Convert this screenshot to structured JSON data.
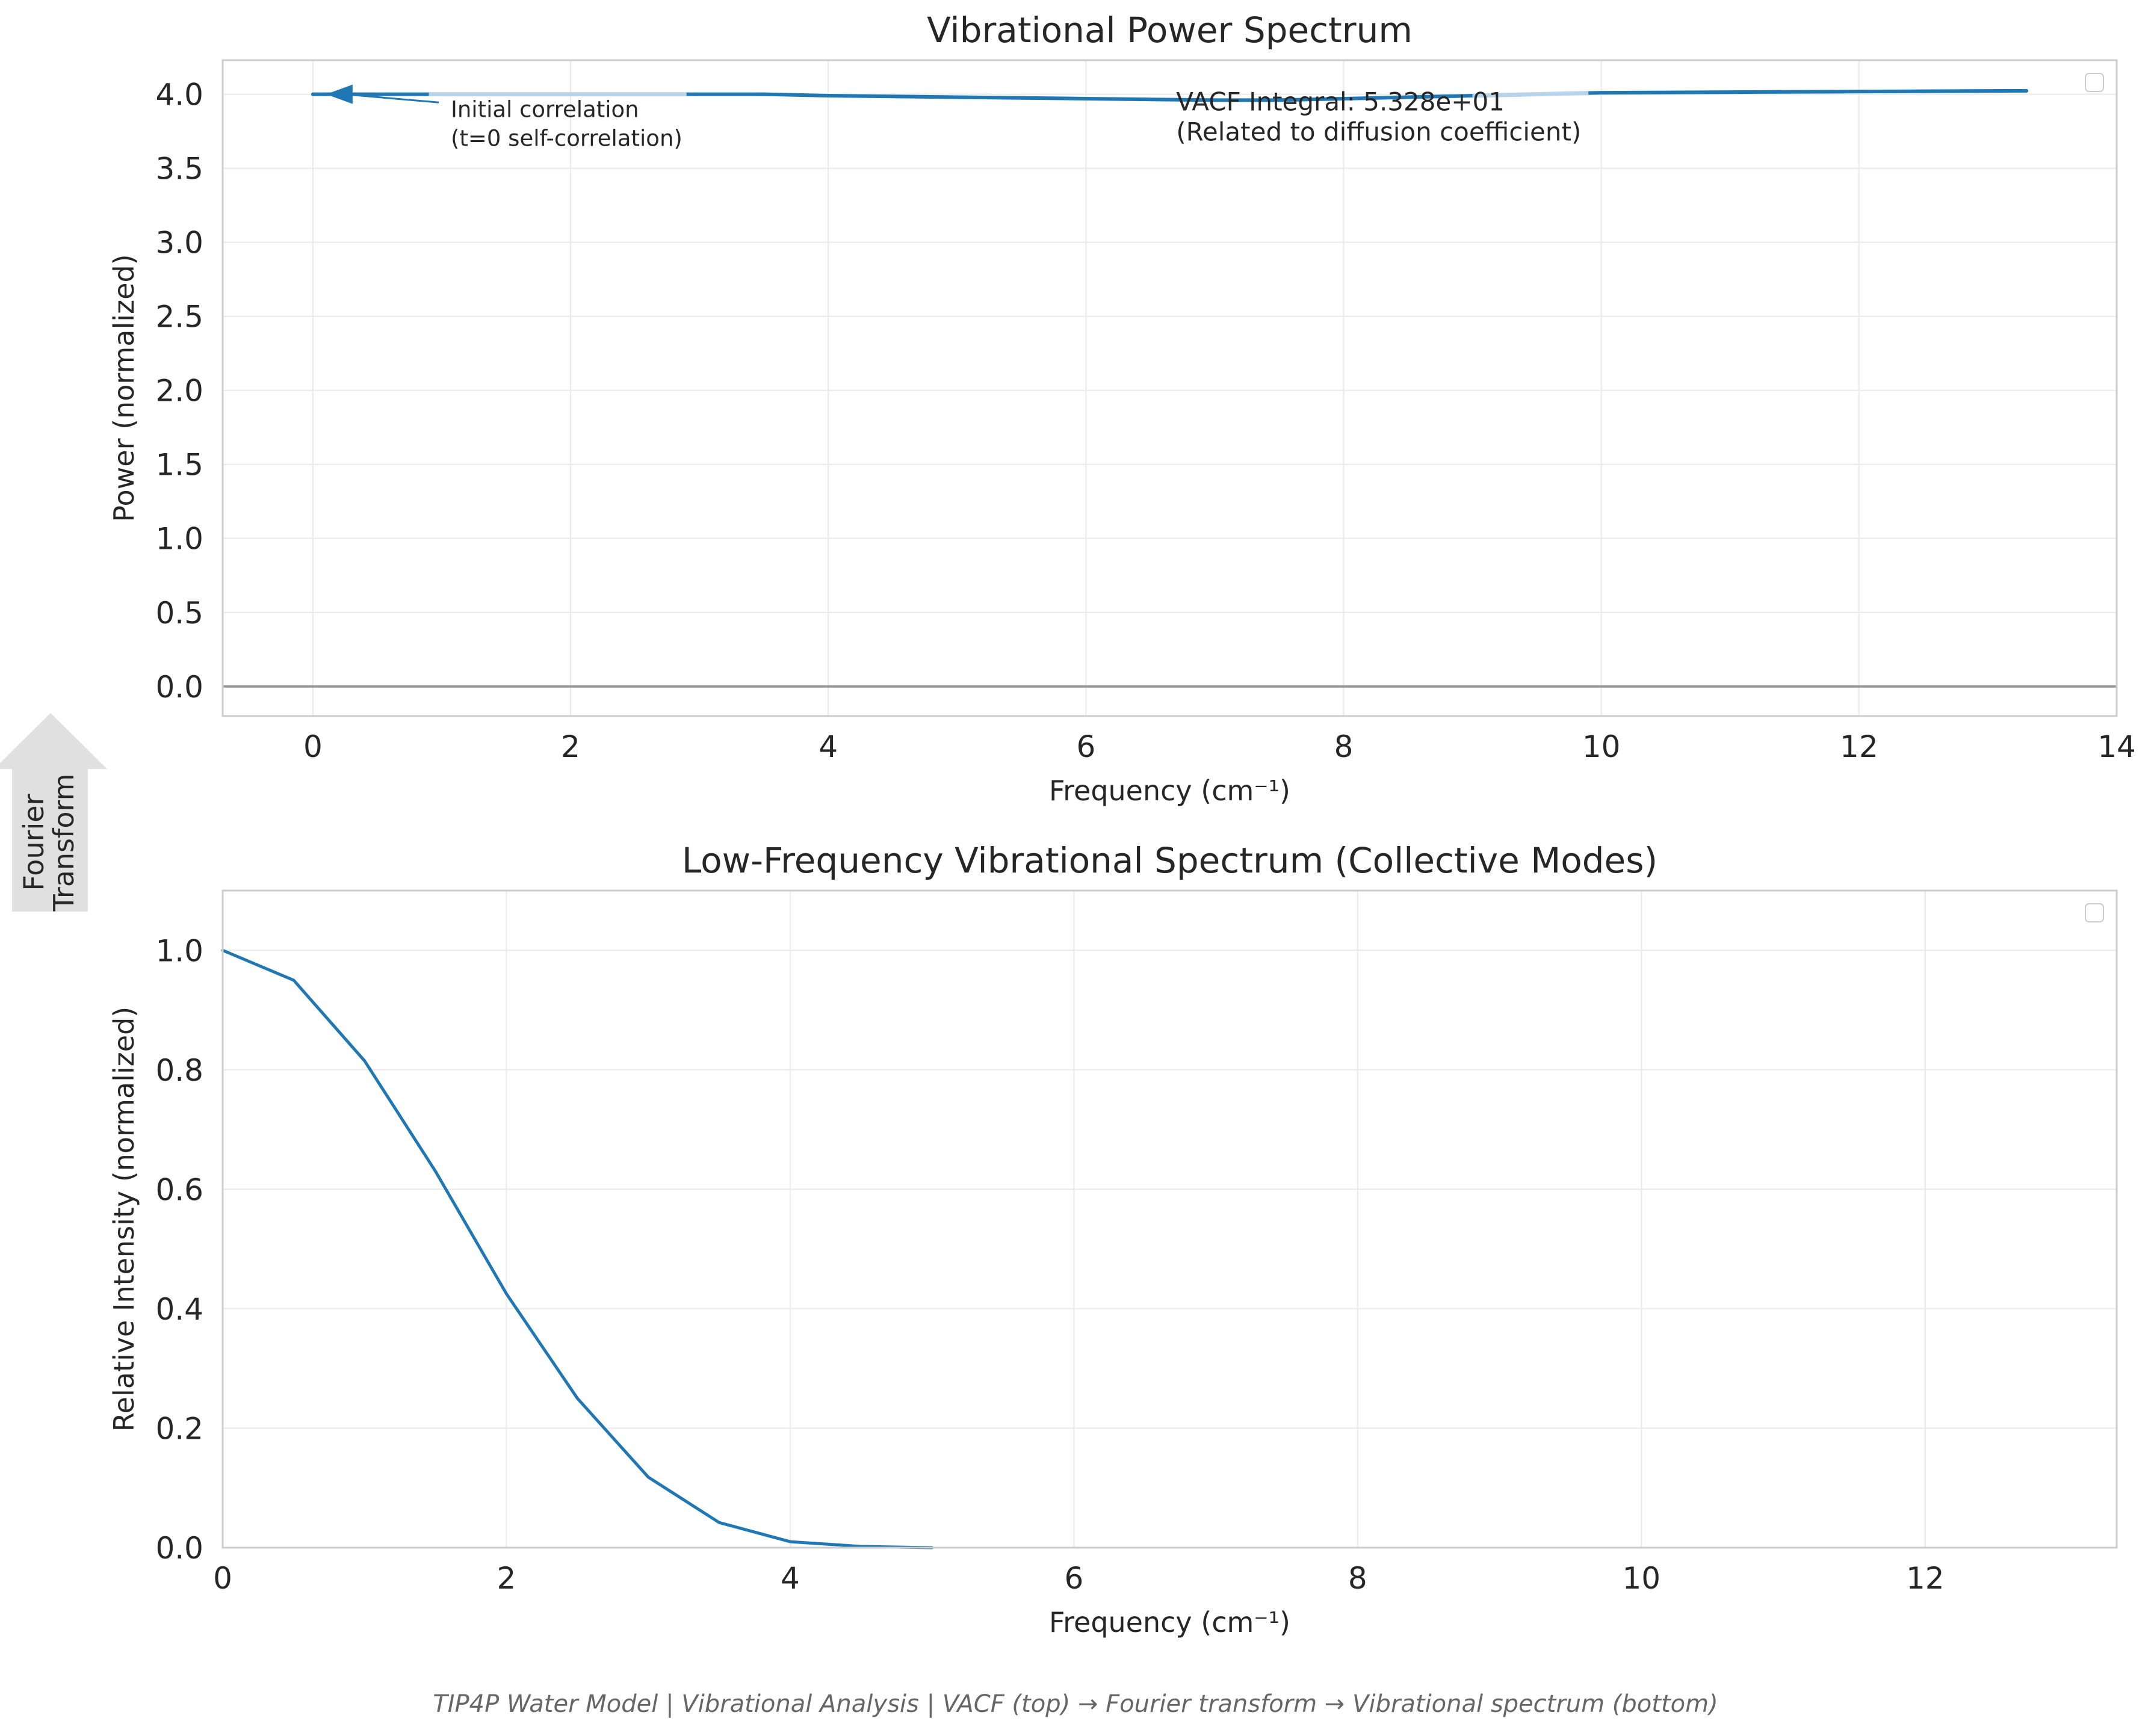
{
  "caption": "TIP4P Water Model | Vibrational Analysis | VACF (top) → Fourier transform → Vibrational spectrum (bottom)",
  "side_arrow": {
    "line1": "Fourier",
    "line2": "Transform",
    "color": "#e0e0e0"
  },
  "chart_data": [
    {
      "type": "line",
      "title": "Vibrational Power Spectrum",
      "xlabel": "Frequency (cm⁻¹)",
      "ylabel": "Power (normalized)",
      "xlim": [
        -0.7,
        14
      ],
      "ylim": [
        -0.2,
        4.23
      ],
      "xticks": [
        0,
        2,
        4,
        6,
        8,
        10,
        12,
        14
      ],
      "yticks": [
        0.0,
        0.5,
        1.0,
        1.5,
        2.0,
        2.5,
        3.0,
        3.5,
        4.0
      ],
      "xtick_labels": [
        "0",
        "2",
        "4",
        "6",
        "8",
        "10",
        "12",
        "14"
      ],
      "ytick_labels": [
        "0.0",
        "0.5",
        "1.0",
        "1.5",
        "2.0",
        "2.5",
        "3.0",
        "3.5",
        "4.0"
      ],
      "grid": true,
      "legend": "top-right (empty)",
      "hline": {
        "y": 0.0,
        "color": "#999999"
      },
      "series": [
        {
          "color": "#1f77b4",
          "x": [
            0.0,
            0.5,
            1.0,
            1.5,
            2.0,
            2.5,
            3.0,
            3.5,
            4.0,
            4.5,
            5.0,
            5.5,
            6.0,
            6.5,
            7.0,
            7.5,
            8.0,
            8.5,
            9.0,
            9.5,
            10.0,
            10.5,
            11.0,
            11.5,
            12.0,
            12.5,
            13.0,
            13.3
          ],
          "values": [
            4.0,
            4.0,
            4.0,
            4.0,
            4.0,
            4.0,
            4.0,
            4.0,
            3.99,
            3.985,
            3.98,
            3.975,
            3.97,
            3.965,
            3.96,
            3.96,
            3.97,
            3.98,
            3.99,
            4.0,
            4.01,
            4.012,
            4.014,
            4.016,
            4.018,
            4.02,
            4.022,
            4.023
          ]
        }
      ],
      "highlight_segments": {
        "color": "#b8d4ea",
        "ranges": [
          [
            0.9,
            2.9
          ],
          [
            9.0,
            9.9
          ]
        ]
      },
      "annotations": [
        {
          "text_lines": [
            "Initial correlation",
            "(t=0 self-correlation)"
          ],
          "xy": [
            0.0,
            4.0
          ],
          "xytext": [
            1.0,
            3.92
          ],
          "arrow": true
        },
        {
          "text_lines": [
            "VACF Integral: 5.328e+01",
            "(Related to diffusion coefficient)"
          ],
          "xytext": [
            6.7,
            3.94
          ],
          "arrow": false
        }
      ]
    },
    {
      "type": "line",
      "title": "Low-Frequency Vibrational Spectrum (Collective Modes)",
      "xlabel": "Frequency (cm⁻¹)",
      "ylabel": "Relative Intensity (normalized)",
      "xlim": [
        0,
        13.35
      ],
      "ylim": [
        0,
        1.1
      ],
      "xticks": [
        0,
        2,
        4,
        6,
        8,
        10,
        12
      ],
      "yticks": [
        0.0,
        0.2,
        0.4,
        0.6,
        0.8,
        1.0
      ],
      "xtick_labels": [
        "0",
        "2",
        "4",
        "6",
        "8",
        "10",
        "12"
      ],
      "ytick_labels": [
        "0.0",
        "0.2",
        "0.4",
        "0.6",
        "0.8",
        "1.0"
      ],
      "grid": true,
      "legend": "top-right (empty)",
      "series": [
        {
          "color": "#1f77b4",
          "x": [
            0.0,
            0.5,
            1.0,
            1.5,
            2.0,
            2.5,
            3.0,
            3.5,
            4.0,
            4.5,
            5.0
          ],
          "values": [
            1.0,
            0.95,
            0.815,
            0.63,
            0.425,
            0.25,
            0.118,
            0.042,
            0.01,
            0.002,
            0.0
          ]
        }
      ]
    }
  ]
}
